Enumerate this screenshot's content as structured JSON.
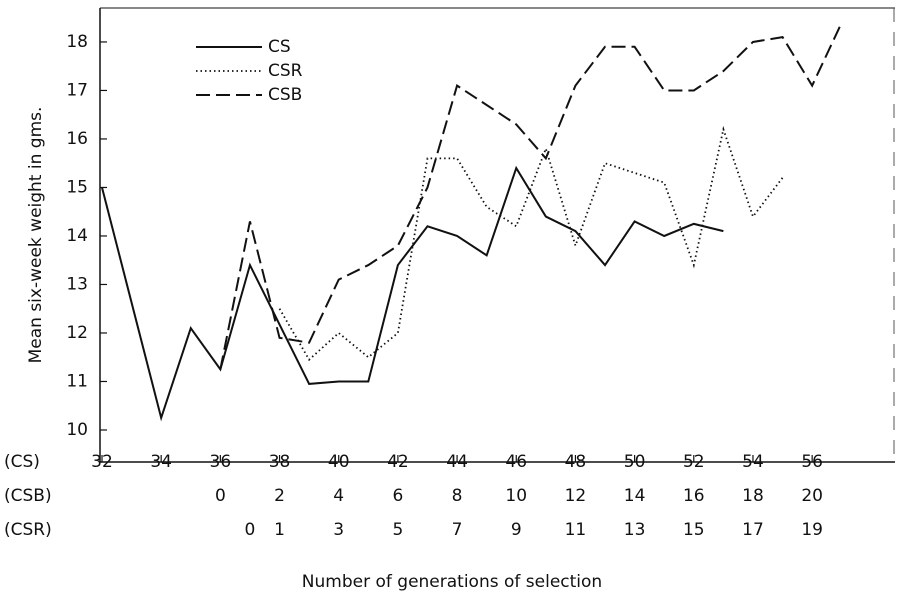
{
  "chart_data": {
    "type": "line",
    "ylabel": "Mean six-week weight in gms.",
    "xlabel": "Number of generations of selection",
    "xlim": [
      32,
      58.8
    ],
    "ylim": [
      9.34,
      18.7
    ],
    "yticks": [
      10,
      11,
      12,
      13,
      14,
      15,
      16,
      17,
      18
    ],
    "x_tick_rows": [
      {
        "label": "(CS)",
        "ticks": [
          32,
          34,
          36,
          38,
          40,
          42,
          44,
          46,
          48,
          50,
          52,
          54,
          56
        ]
      },
      {
        "label": "(CSB)",
        "ticks": [
          {
            "value": 36,
            "label": "0"
          },
          {
            "value": 38,
            "label": "2"
          },
          {
            "value": 40,
            "label": "4"
          },
          {
            "value": 42,
            "label": "6"
          },
          {
            "value": 44,
            "label": "8"
          },
          {
            "value": 46,
            "label": "10"
          },
          {
            "value": 48,
            "label": "12"
          },
          {
            "value": 50,
            "label": "14"
          },
          {
            "value": 52,
            "label": "16"
          },
          {
            "value": 54,
            "label": "18"
          },
          {
            "value": 56,
            "label": "20"
          }
        ]
      },
      {
        "label": "(CSR)",
        "ticks": [
          {
            "value": 37,
            "label": "0"
          },
          {
            "value": 38,
            "label": "1"
          },
          {
            "value": 40,
            "label": "3"
          },
          {
            "value": 42,
            "label": "5"
          },
          {
            "value": 44,
            "label": "7"
          },
          {
            "value": 46,
            "label": "9"
          },
          {
            "value": 48,
            "label": "11"
          },
          {
            "value": 50,
            "label": "13"
          },
          {
            "value": 52,
            "label": "15"
          },
          {
            "value": 54,
            "label": "17"
          },
          {
            "value": 56,
            "label": "19"
          }
        ]
      }
    ],
    "series": [
      {
        "name": "CS",
        "style": "solid",
        "color": "#111111",
        "x": [
          32,
          34,
          35,
          36,
          37,
          39,
          40,
          41,
          42,
          43,
          44,
          45,
          46,
          47,
          48,
          49,
          50,
          51,
          52,
          53
        ],
        "values": [
          15.0,
          10.25,
          12.1,
          11.25,
          13.4,
          10.95,
          11.0,
          11.0,
          13.4,
          14.2,
          14.0,
          13.6,
          15.4,
          14.4,
          14.1,
          13.4,
          14.3,
          14.0,
          14.25,
          14.1
        ]
      },
      {
        "name": "CSR",
        "style": "dotted",
        "color": "#111111",
        "x": [
          38,
          39,
          40,
          41,
          42,
          43,
          44,
          45,
          46,
          47,
          48,
          49,
          50,
          51,
          52,
          53,
          54,
          55
        ],
        "values": [
          12.5,
          11.45,
          12.0,
          11.5,
          12.0,
          15.6,
          15.6,
          14.6,
          14.2,
          15.8,
          13.8,
          15.5,
          15.3,
          15.1,
          13.4,
          16.2,
          14.4,
          15.2
        ]
      },
      {
        "name": "CSB",
        "style": "dashed",
        "color": "#111111",
        "x": [
          36,
          37,
          38,
          39,
          40,
          41,
          42,
          43,
          44,
          46,
          47,
          48,
          49,
          50,
          51,
          52,
          53,
          54,
          55,
          56,
          57
        ],
        "values": [
          11.25,
          14.3,
          11.9,
          11.8,
          13.1,
          13.4,
          13.8,
          15.0,
          17.1,
          16.3,
          15.6,
          17.1,
          17.9,
          17.9,
          17.0,
          17.0,
          17.4,
          18.0,
          18.1,
          17.1,
          18.4
        ]
      }
    ]
  }
}
